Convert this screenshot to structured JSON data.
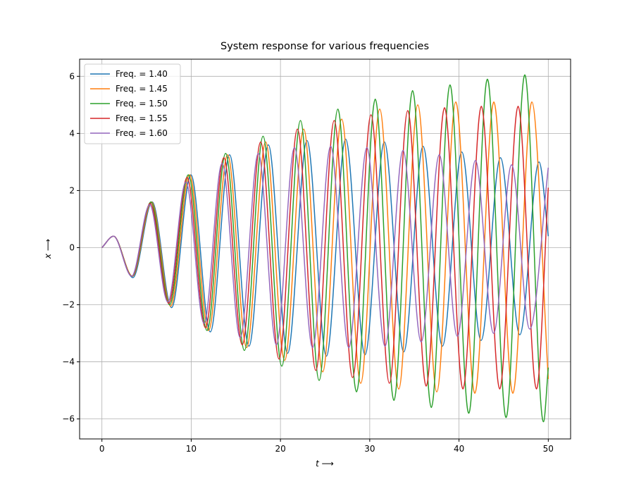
{
  "chart_data": {
    "type": "line",
    "title": "System response for various frequencies",
    "x_label": "t ⟶",
    "y_label": "x ⟶",
    "xlim": [
      -2.5,
      52.5
    ],
    "xticks": [
      0,
      10,
      20,
      30,
      40,
      50
    ],
    "ylim": [
      -6.7,
      6.6
    ],
    "yticks": [
      {
        "value": -6,
        "label": "−6"
      },
      {
        "value": -4,
        "label": "−4"
      },
      {
        "value": -2,
        "label": "−2"
      },
      0,
      2,
      4,
      6
    ],
    "grid": true,
    "legend": "upper left",
    "series": [
      {
        "name": "Freq. = 1.40",
        "color": "#1f77b4",
        "x": [
          0,
          1.3,
          3.47,
          5.63,
          7.8,
          9.97,
          12.14,
          14.3,
          16.47,
          18.64,
          20.8,
          22.97,
          25.14,
          27.3,
          29.47,
          31.64,
          33.81,
          35.97,
          38.14,
          40.31,
          42.47,
          44.64,
          46.81,
          48.97,
          50
        ],
        "values": [
          0,
          0.4,
          -1.05,
          1.6,
          -2.1,
          2.55,
          -2.95,
          3.25,
          -3.45,
          3.6,
          -3.7,
          3.75,
          -3.8,
          3.8,
          -3.75,
          3.7,
          -3.65,
          3.55,
          -3.45,
          3.35,
          -3.25,
          3.15,
          -3.05,
          3.0,
          0.4
        ]
      },
      {
        "name": "Freq. = 1.45",
        "color": "#ff7f0e",
        "x": [
          0,
          1.3,
          3.43,
          5.56,
          7.69,
          9.82,
          11.95,
          14.08,
          16.21,
          18.34,
          20.47,
          22.6,
          24.73,
          26.86,
          28.99,
          31.12,
          33.25,
          35.38,
          37.51,
          39.64,
          41.77,
          43.9,
          46.03,
          48.16,
          50
        ],
        "values": [
          0,
          0.4,
          -1.0,
          1.6,
          -2.05,
          2.55,
          -2.9,
          3.25,
          -3.5,
          3.7,
          -3.95,
          4.15,
          -4.35,
          4.5,
          -4.75,
          4.85,
          -4.95,
          5.0,
          -5.05,
          5.1,
          -5.1,
          5.1,
          -5.1,
          5.1,
          -4.6
        ]
      },
      {
        "name": "Freq. = 1.50",
        "color": "#2ca02c",
        "x": [
          0,
          1.3,
          3.39,
          5.49,
          7.58,
          9.68,
          11.77,
          13.86,
          15.96,
          18.05,
          20.15,
          22.24,
          24.33,
          26.43,
          28.52,
          30.62,
          32.71,
          34.8,
          36.9,
          38.99,
          41.09,
          43.18,
          45.27,
          47.37,
          49.46,
          50
        ],
        "values": [
          0,
          0.4,
          -1.0,
          1.6,
          -2.0,
          2.55,
          -2.9,
          3.3,
          -3.6,
          3.9,
          -4.15,
          4.45,
          -4.65,
          4.85,
          -5.05,
          5.2,
          -5.35,
          5.5,
          -5.6,
          5.7,
          -5.8,
          5.9,
          -5.95,
          6.05,
          -6.1,
          -4.2
        ]
      },
      {
        "name": "Freq. = 1.55",
        "color": "#d62728",
        "x": [
          0,
          1.3,
          3.36,
          5.42,
          7.48,
          9.54,
          11.6,
          13.66,
          15.72,
          17.78,
          19.84,
          21.9,
          23.96,
          26.02,
          28.08,
          30.14,
          32.2,
          34.26,
          36.32,
          38.38,
          40.44,
          42.5,
          44.56,
          46.62,
          48.68,
          50
        ],
        "values": [
          0,
          0.4,
          -1.0,
          1.55,
          -1.95,
          2.45,
          -2.8,
          3.15,
          -3.4,
          3.7,
          -3.9,
          4.15,
          -4.3,
          4.45,
          -4.55,
          4.65,
          -4.75,
          4.8,
          -4.85,
          4.9,
          -4.95,
          4.95,
          -4.95,
          4.95,
          -4.95,
          2.1
        ]
      },
      {
        "name": "Freq. = 1.60",
        "color": "#9467bd",
        "x": [
          0,
          1.3,
          3.33,
          5.35,
          7.38,
          9.41,
          11.44,
          13.46,
          15.49,
          17.52,
          19.54,
          21.57,
          23.6,
          25.62,
          27.65,
          29.68,
          31.71,
          33.73,
          35.76,
          37.79,
          39.81,
          41.84,
          43.87,
          45.89,
          47.92,
          50
        ],
        "values": [
          0,
          0.4,
          -1.0,
          1.5,
          -1.9,
          2.3,
          -2.65,
          2.95,
          -3.15,
          3.3,
          -3.4,
          3.5,
          -3.5,
          3.55,
          -3.5,
          3.5,
          -3.45,
          3.4,
          -3.3,
          3.25,
          -3.1,
          3.05,
          -3.0,
          2.9,
          -2.85,
          2.8
        ]
      }
    ]
  }
}
